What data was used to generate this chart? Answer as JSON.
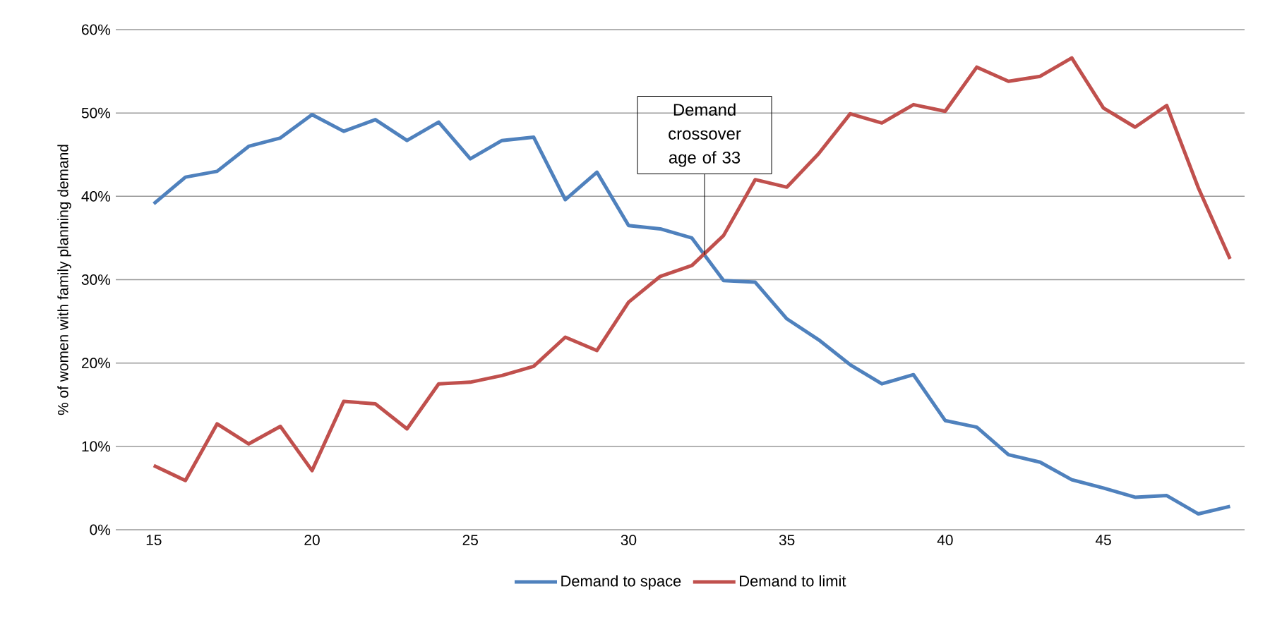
{
  "chart_data": {
    "type": "line",
    "ylabel": "% of women with family planning demand",
    "x": [
      15,
      16,
      17,
      18,
      19,
      20,
      21,
      22,
      23,
      24,
      25,
      26,
      27,
      28,
      29,
      30,
      31,
      32,
      33,
      34,
      35,
      36,
      37,
      38,
      39,
      40,
      41,
      42,
      43,
      44,
      45,
      46,
      47,
      48,
      49
    ],
    "series": [
      {
        "name": "Demand to space",
        "color": "#4f81bd",
        "values": [
          39.1,
          42.3,
          43.0,
          46.0,
          47.0,
          49.8,
          47.8,
          49.2,
          46.7,
          48.9,
          44.5,
          46.7,
          47.1,
          39.6,
          42.9,
          36.5,
          36.1,
          35.0,
          29.9,
          29.7,
          25.3,
          22.8,
          19.8,
          17.5,
          18.6,
          13.1,
          12.3,
          9.0,
          8.1,
          6.0,
          5.0,
          3.9,
          4.1,
          1.9,
          2.8
        ]
      },
      {
        "name": "Demand to limit",
        "color": "#c0504d",
        "values": [
          7.7,
          5.9,
          12.7,
          10.3,
          12.4,
          7.1,
          15.4,
          15.1,
          12.1,
          17.5,
          17.7,
          18.5,
          19.6,
          23.1,
          21.5,
          27.3,
          30.4,
          31.7,
          35.3,
          42.0,
          41.1,
          45.1,
          49.9,
          48.8,
          51.0,
          50.2,
          55.5,
          53.8,
          54.4,
          56.6,
          50.6,
          48.3,
          50.9,
          41.0,
          32.5
        ]
      }
    ],
    "xlim": [
      13.8,
      49.46
    ],
    "xticks": [
      15,
      20,
      25,
      30,
      35,
      40,
      45
    ],
    "ylim": [
      0,
      60
    ],
    "yticks": [
      {
        "value": 0,
        "label": "0%"
      },
      {
        "value": 10,
        "label": "10%"
      },
      {
        "value": 20,
        "label": "20%"
      },
      {
        "value": 30,
        "label": "30%"
      },
      {
        "value": 40,
        "label": "40%"
      },
      {
        "value": 50,
        "label": "50%"
      },
      {
        "value": 60,
        "label": "60%"
      }
    ],
    "grid": "y",
    "legend": "bottom",
    "marker": "none",
    "line_style": "solid",
    "annotations": [
      {
        "text": "Demand crossover age of 33",
        "x": 32.4,
        "y": 33.0
      }
    ]
  }
}
